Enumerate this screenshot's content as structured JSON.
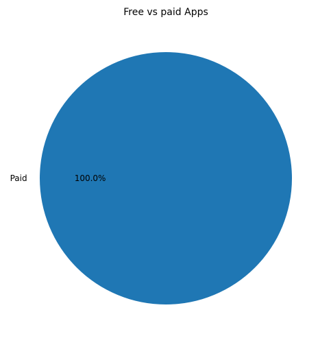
{
  "chart_data": {
    "type": "pie",
    "title": "Free vs paid Apps",
    "labels": [
      "Paid"
    ],
    "values": [
      100
    ],
    "percent_labels": [
      "100.0%"
    ],
    "colors": [
      "#1f77b4"
    ],
    "legend": "none"
  }
}
